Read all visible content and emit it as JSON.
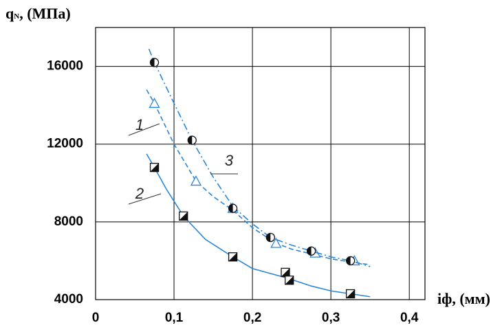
{
  "chart_data": {
    "type": "line",
    "y_label": "q",
    "y_label_sub": "N",
    "y_label_unit": ", (МПа)",
    "x_label": "iф",
    "x_label_unit": ", (мм)",
    "xlim": [
      0,
      0.42
    ],
    "ylim": [
      4000,
      18000
    ],
    "xticks": [
      0,
      {
        "value": 0.1,
        "label": "0,1"
      },
      {
        "value": 0.2,
        "label": "0,2"
      },
      {
        "value": 0.3,
        "label": "0,3"
      },
      {
        "value": 0.4,
        "label": "0,4"
      }
    ],
    "yticks": [
      4000,
      8000,
      12000,
      16000
    ],
    "grid": true,
    "series": [
      {
        "name": "1",
        "color": "#2a86d8",
        "dash": "dashed",
        "marker": "triangle",
        "x": [
          0.075,
          0.128,
          0.175,
          0.23,
          0.28,
          0.33
        ],
        "values": [
          14100,
          10100,
          8700,
          6900,
          6400,
          6000
        ],
        "curve_x": [
          0.065,
          0.075,
          0.1,
          0.128,
          0.15,
          0.175,
          0.2,
          0.23,
          0.25,
          0.28,
          0.3,
          0.33,
          0.35
        ],
        "curve_values": [
          14800,
          14100,
          12000,
          10100,
          9300,
          8600,
          7700,
          6900,
          6600,
          6300,
          6100,
          5900,
          5800
        ]
      },
      {
        "name": "2",
        "color": "#2a86d8",
        "dash": "solid",
        "marker": "square",
        "x": [
          0.075,
          0.112,
          0.175,
          0.242,
          0.247,
          0.325
        ],
        "values": [
          10800,
          8300,
          6200,
          5400,
          5000,
          4300
        ],
        "curve_x": [
          0.065,
          0.075,
          0.09,
          0.112,
          0.14,
          0.175,
          0.2,
          0.245,
          0.275,
          0.3,
          0.325,
          0.35
        ],
        "curve_values": [
          11500,
          10800,
          9700,
          8300,
          7100,
          6200,
          5600,
          5100,
          4700,
          4450,
          4300,
          4150
        ]
      },
      {
        "name": "3",
        "color": "#2a86d8",
        "dash": "dashdot",
        "marker": "circle",
        "x": [
          0.075,
          0.123,
          0.175,
          0.223,
          0.275,
          0.325
        ],
        "values": [
          16200,
          12200,
          8700,
          7200,
          6500,
          6000
        ],
        "curve_x": [
          0.068,
          0.075,
          0.1,
          0.123,
          0.15,
          0.175,
          0.2,
          0.223,
          0.25,
          0.275,
          0.3,
          0.325,
          0.35
        ],
        "curve_values": [
          16900,
          16200,
          14100,
          12200,
          10300,
          8800,
          7900,
          7200,
          6800,
          6500,
          6200,
          6000,
          5700
        ]
      }
    ]
  }
}
